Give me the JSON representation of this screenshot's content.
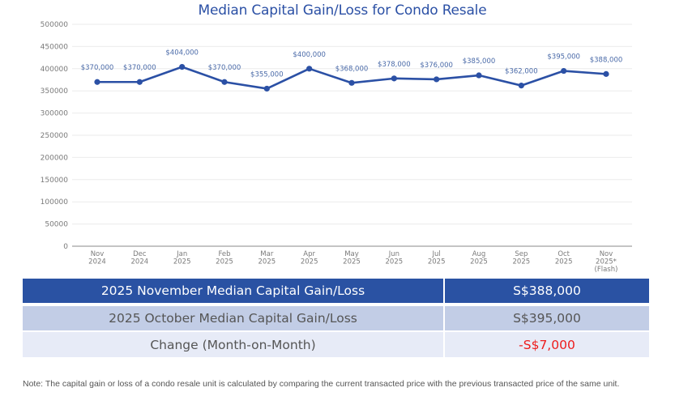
{
  "chart_data": {
    "type": "line",
    "title": "Median Capital Gain/Loss for Condo Resale",
    "xlabel": "",
    "ylabel": "",
    "ylim": [
      0,
      500000
    ],
    "yticks": [
      0,
      50000,
      100000,
      150000,
      200000,
      250000,
      300000,
      350000,
      400000,
      450000,
      500000
    ],
    "ytick_labels": [
      "0",
      "50000",
      "100000",
      "150000",
      "200000",
      "250000",
      "300000",
      "350000",
      "400000",
      "450000",
      "500000"
    ],
    "grid": true,
    "legend": "none",
    "categories": [
      [
        "Nov",
        "2024"
      ],
      [
        "Dec",
        "2024"
      ],
      [
        "Jan",
        "2025"
      ],
      [
        "Feb",
        "2025"
      ],
      [
        "Mar",
        "2025"
      ],
      [
        "Apr",
        "2025"
      ],
      [
        "May",
        "2025"
      ],
      [
        "Jun",
        "2025"
      ],
      [
        "Jul",
        "2025"
      ],
      [
        "Aug",
        "2025"
      ],
      [
        "Sep",
        "2025"
      ],
      [
        "Oct",
        "2025"
      ],
      [
        "Nov",
        "2025*",
        "(Flash)"
      ]
    ],
    "series": [
      {
        "name": "Median Capital Gain/Loss",
        "color": "#2b50a5",
        "values": [
          370000,
          370000,
          404000,
          370000,
          355000,
          400000,
          368000,
          378000,
          376000,
          385000,
          362000,
          395000,
          388000
        ],
        "data_labels": [
          "$370,000",
          "$370,000",
          "$404,000",
          "$370,000",
          "$355,000",
          "$400,000",
          "$368,000",
          "$378,000",
          "$376,000",
          "$385,000",
          "$362,000",
          "$395,000",
          "$388,000"
        ]
      }
    ]
  },
  "summary_table": {
    "rows": [
      {
        "label": "2025 November Median Capital Gain/Loss",
        "value": "S$388,000"
      },
      {
        "label": "2025 October Median Capital Gain/Loss",
        "value": "S$395,000"
      },
      {
        "label": "Change (Month-on-Month)",
        "value": "-S$7,000"
      }
    ],
    "colors": {
      "header_bg": "#2a52a3",
      "row2_bg": "#c2cde6",
      "row3_bg": "#e7ebf7",
      "negative_change": "#ee1c1c"
    }
  },
  "note": "Note: The capital gain or loss of a condo resale unit is calculated by comparing the current transacted price with the previous transacted price of the same unit."
}
